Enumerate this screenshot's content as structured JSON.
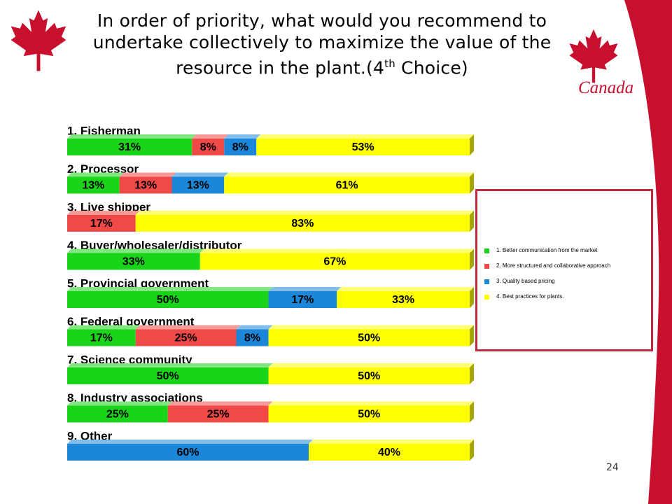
{
  "slide": {
    "title_main": "In order of priority, what would you recommend to undertake collectively to maximize the value of the resource in the plant.(4",
    "title_sup": "th",
    "title_end": " Choice)",
    "logo_text": "Canada",
    "page_number": "24"
  },
  "chart_data": {
    "type": "bar",
    "orientation": "horizontal",
    "stacked": true,
    "xlim": [
      0,
      100
    ],
    "legend_placement": "right",
    "categories": [
      "1. Fisherman",
      "2. Processor",
      "3. Live shipper",
      "4. Buyer/wholesaler/distributor",
      "5. Provincial government",
      "6. Federal government",
      "7. Science community",
      "8. Industry associations",
      "9. Other"
    ],
    "series": [
      {
        "name": "1. Better communication from the market",
        "color": "#19d419",
        "values": [
          31,
          13,
          0,
          33,
          50,
          17,
          50,
          25,
          0
        ],
        "labels": [
          "31%",
          "13%",
          "",
          "33%",
          "50%",
          "17%",
          "50%",
          "25%",
          ""
        ]
      },
      {
        "name": "2. More structured and collaborative approach",
        "color": "#f14848",
        "values": [
          8,
          13,
          17,
          0,
          0,
          25,
          0,
          25,
          0
        ],
        "labels": [
          "8%",
          "13%",
          "17%",
          "",
          "",
          "25%",
          "",
          "25%",
          ""
        ]
      },
      {
        "name": "3. Quality based pricing",
        "color": "#1c86d8",
        "values": [
          8,
          13,
          0,
          0,
          17,
          8,
          0,
          0,
          60
        ],
        "labels": [
          "8%",
          "13%",
          "",
          "",
          "17%",
          "8%",
          "",
          "",
          "60%"
        ]
      },
      {
        "name": "4. Best practices for plants.",
        "color": "#ffff00",
        "values": [
          53,
          61,
          83,
          67,
          33,
          50,
          50,
          50,
          40
        ],
        "labels": [
          "53%",
          "61%",
          "83%",
          "67%",
          "33%",
          "50%",
          "50%",
          "50%",
          "40%"
        ]
      }
    ]
  }
}
